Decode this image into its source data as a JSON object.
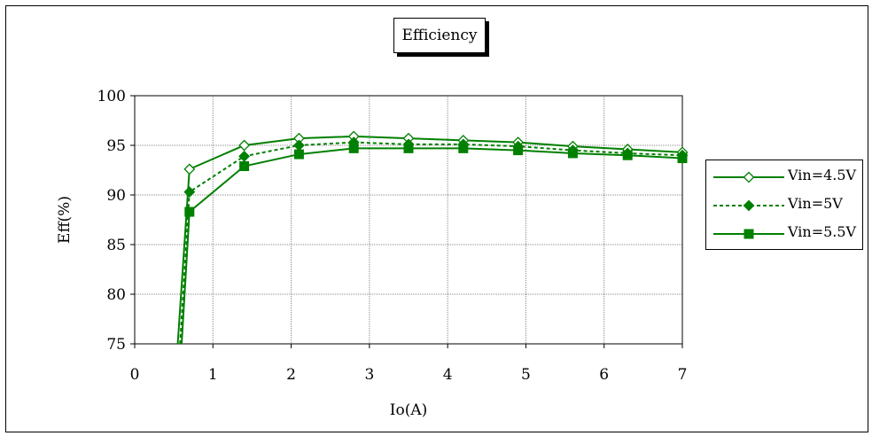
{
  "chart_data": {
    "type": "line",
    "title": "Efficiency",
    "xlabel": "Io(A)",
    "ylabel": "Eff(%)",
    "xlim": [
      0,
      7
    ],
    "ylim": [
      75,
      100
    ],
    "xticks": [
      0,
      1,
      2,
      3,
      4,
      5,
      6,
      7
    ],
    "yticks": [
      75,
      80,
      85,
      90,
      95,
      100
    ],
    "grid": true,
    "legend_position": "right",
    "series": [
      {
        "name": "Vin=4.5V",
        "marker": "diamond-open",
        "line": "solid",
        "color": "#008000",
        "x": [
          0.55,
          0.7,
          1.4,
          2.1,
          2.8,
          3.5,
          4.2,
          4.9,
          5.6,
          6.3,
          7.0
        ],
        "y": [
          75,
          92.6,
          95.0,
          95.7,
          95.9,
          95.7,
          95.5,
          95.3,
          94.9,
          94.6,
          94.3
        ]
      },
      {
        "name": "Vin=5V",
        "marker": "diamond-filled",
        "line": "dashed",
        "color": "#008000",
        "x": [
          0.58,
          0.7,
          1.4,
          2.1,
          2.8,
          3.5,
          4.2,
          4.9,
          5.6,
          6.3,
          7.0
        ],
        "y": [
          75,
          90.3,
          93.9,
          95.0,
          95.3,
          95.1,
          95.1,
          94.9,
          94.5,
          94.2,
          94.0
        ]
      },
      {
        "name": "Vin=5.5V",
        "marker": "square-filled",
        "line": "solid",
        "color": "#008000",
        "x": [
          0.6,
          0.7,
          1.4,
          2.1,
          2.8,
          3.5,
          4.2,
          4.9,
          5.6,
          6.3,
          7.0
        ],
        "y": [
          75,
          88.3,
          92.9,
          94.1,
          94.7,
          94.7,
          94.7,
          94.5,
          94.2,
          94.0,
          93.7
        ]
      }
    ]
  }
}
